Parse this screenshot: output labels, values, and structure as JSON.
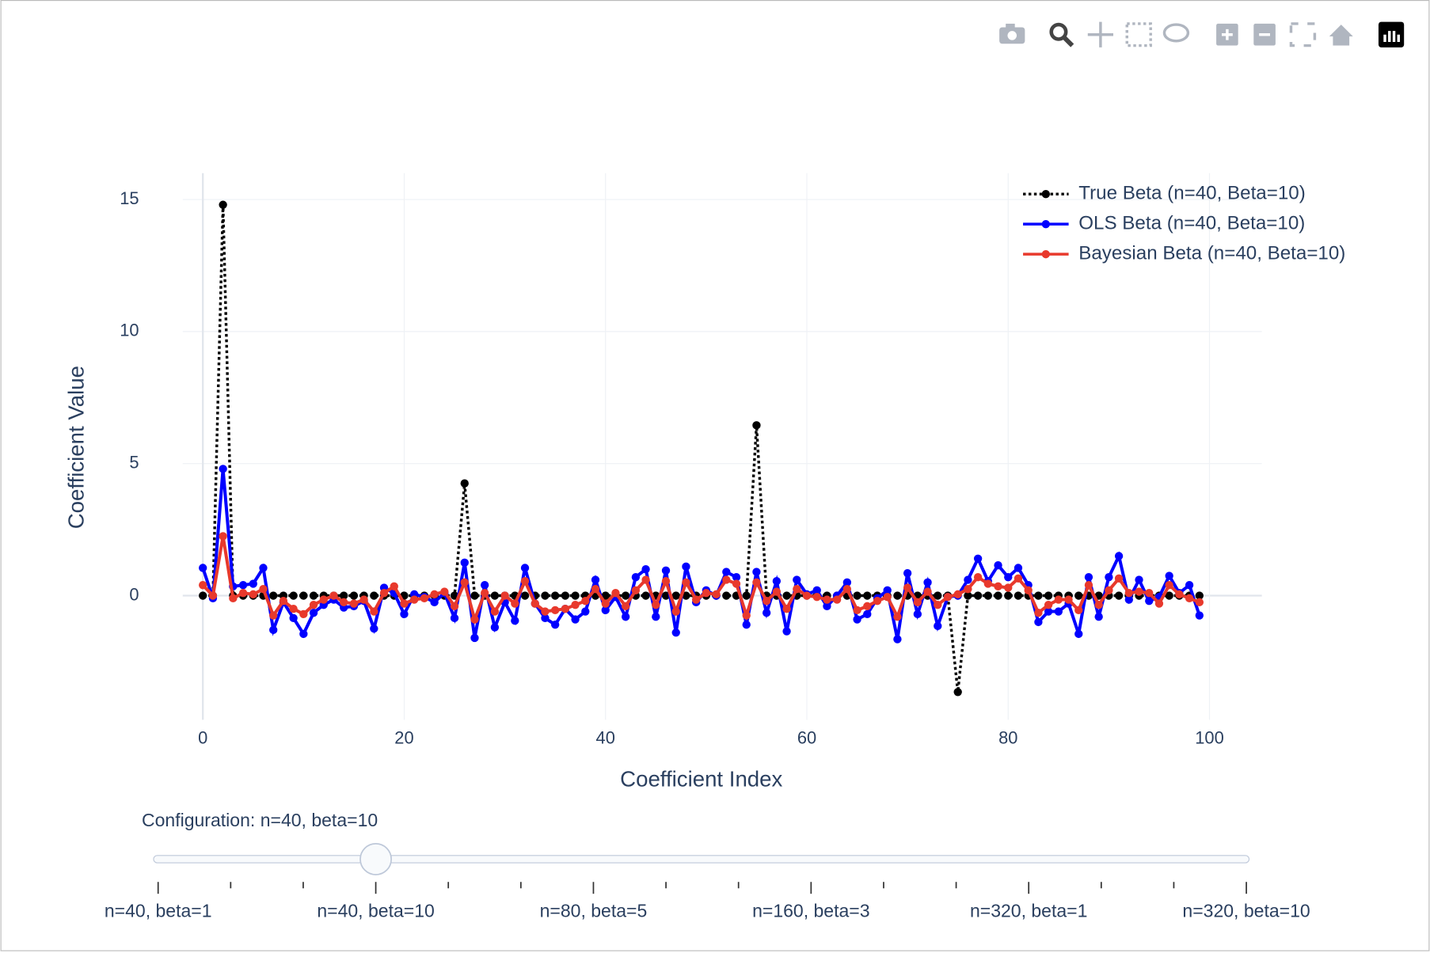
{
  "chart_data": {
    "type": "line",
    "x_label": "Coefficient Index",
    "y_label": "Coefficient Value",
    "x": [
      0,
      1,
      2,
      3,
      4,
      5,
      6,
      7,
      8,
      9,
      10,
      11,
      12,
      13,
      14,
      15,
      16,
      17,
      18,
      19,
      20,
      21,
      22,
      23,
      24,
      25,
      26,
      27,
      28,
      29,
      30,
      31,
      32,
      33,
      34,
      35,
      36,
      37,
      38,
      39,
      40,
      41,
      42,
      43,
      44,
      45,
      46,
      47,
      48,
      49,
      50,
      51,
      52,
      53,
      54,
      55,
      56,
      57,
      58,
      59,
      60,
      61,
      62,
      63,
      64,
      65,
      66,
      67,
      68,
      69,
      70,
      71,
      72,
      73,
      74,
      75,
      76,
      77,
      78,
      79,
      80,
      81,
      82,
      83,
      84,
      85,
      86,
      87,
      88,
      89,
      90,
      91,
      92,
      93,
      94,
      95,
      96,
      97,
      98,
      99
    ],
    "series": [
      {
        "name": "True Beta (n=40, Beta=10)",
        "color": "#000000",
        "dash": "dot",
        "values": [
          0,
          0,
          14.8,
          0,
          0,
          0,
          0,
          0,
          0,
          0,
          0,
          0,
          0,
          0,
          0,
          0,
          0,
          0,
          0,
          0,
          0,
          0,
          0,
          0,
          0,
          0,
          4.25,
          0,
          0,
          0,
          0,
          0,
          0,
          0,
          0,
          0,
          0,
          0,
          0,
          0,
          0,
          0,
          0,
          0,
          0,
          0,
          0,
          0,
          0,
          0,
          0,
          0,
          0,
          0,
          0,
          6.45,
          0,
          0,
          0,
          0,
          0,
          0,
          0,
          0,
          0,
          0,
          0,
          0,
          0,
          0,
          0,
          0,
          0,
          0,
          0,
          -3.65,
          0,
          0,
          0,
          0,
          0,
          0,
          0,
          0,
          0,
          0,
          0,
          0,
          0,
          0,
          0,
          0,
          0,
          0,
          0,
          0,
          0,
          0,
          0,
          0
        ]
      },
      {
        "name": "OLS Beta (n=40, Beta=10)",
        "color": "#0000ff",
        "values": [
          1.05,
          -0.1,
          4.8,
          0.35,
          0.4,
          0.45,
          1.05,
          -1.3,
          -0.25,
          -0.85,
          -1.45,
          -0.65,
          -0.35,
          -0.15,
          -0.45,
          -0.4,
          -0.2,
          -1.25,
          0.3,
          0.1,
          -0.7,
          0.05,
          -0.05,
          -0.25,
          0.1,
          -0.85,
          1.25,
          -1.6,
          0.4,
          -1.2,
          -0.25,
          -0.95,
          1.05,
          -0.3,
          -0.85,
          -1.1,
          -0.5,
          -0.9,
          -0.6,
          0.6,
          -0.55,
          -0.05,
          -0.8,
          0.7,
          1.0,
          -0.8,
          0.95,
          -1.4,
          1.1,
          -0.25,
          0.2,
          0,
          0.9,
          0.7,
          -1.1,
          0.9,
          -0.65,
          0.55,
          -1.35,
          0.6,
          0.05,
          0.2,
          -0.4,
          0,
          0.5,
          -0.9,
          -0.7,
          -0.1,
          0.2,
          -1.65,
          0.85,
          -0.7,
          0.5,
          -1.15,
          -0.05,
          0,
          0.6,
          1.4,
          0.55,
          1.15,
          0.7,
          1.05,
          0.4,
          -1.0,
          -0.6,
          -0.6,
          -0.3,
          -1.45,
          0.7,
          -0.8,
          0.7,
          1.5,
          -0.15,
          0.6,
          -0.2,
          -0.05,
          0.75,
          0.1,
          0.4,
          -0.75
        ]
      },
      {
        "name": "Bayesian Beta (n=40, Beta=10)",
        "color": "#e8392c",
        "values": [
          0.4,
          0,
          2.25,
          -0.1,
          0.1,
          0.05,
          0.25,
          -0.75,
          -0.2,
          -0.5,
          -0.7,
          -0.35,
          -0.15,
          0,
          -0.25,
          -0.3,
          -0.15,
          -0.6,
          0.1,
          0.35,
          -0.3,
          -0.15,
          -0.1,
          0.05,
          0.15,
          -0.4,
          0.5,
          -0.9,
          0.1,
          -0.6,
          0,
          -0.3,
          0.55,
          -0.3,
          -0.6,
          -0.55,
          -0.5,
          -0.35,
          -0.2,
          0.25,
          -0.3,
          0.1,
          -0.4,
          0.2,
          0.6,
          -0.35,
          0.55,
          -0.6,
          0.5,
          -0.15,
          0.1,
          0.05,
          0.6,
          0.45,
          -0.75,
          0.5,
          -0.2,
          0.15,
          -0.5,
          0.25,
          0,
          -0.05,
          -0.15,
          -0.15,
          0.25,
          -0.55,
          -0.4,
          -0.2,
          -0.05,
          -0.8,
          0.3,
          -0.25,
          0.15,
          -0.35,
          -0.05,
          0.05,
          0.25,
          0.7,
          0.45,
          0.35,
          0.3,
          0.65,
          0.2,
          -0.65,
          -0.35,
          -0.15,
          -0.15,
          -0.55,
          0.4,
          -0.35,
          0.2,
          0.65,
          0.1,
          0.15,
          0.1,
          -0.3,
          0.4,
          0.05,
          -0.1,
          -0.25
        ]
      }
    ],
    "xlim": [
      -2,
      105.2
    ],
    "xticks": [
      0,
      20,
      40,
      60,
      80,
      100
    ],
    "ylim": [
      -4.7,
      16
    ],
    "yticks": [
      0,
      5,
      10,
      15
    ],
    "grid": true,
    "legend": "top-right",
    "slider": {
      "prefix": "Configuration:",
      "active": 3,
      "steps": [
        "n=40, beta=1",
        null,
        null,
        "n=40, beta=10",
        null,
        null,
        "n=80, beta=5",
        null,
        null,
        "n=160, beta=3",
        null,
        null,
        "n=320, beta=1",
        null,
        null,
        "n=320, beta=10"
      ]
    }
  }
}
